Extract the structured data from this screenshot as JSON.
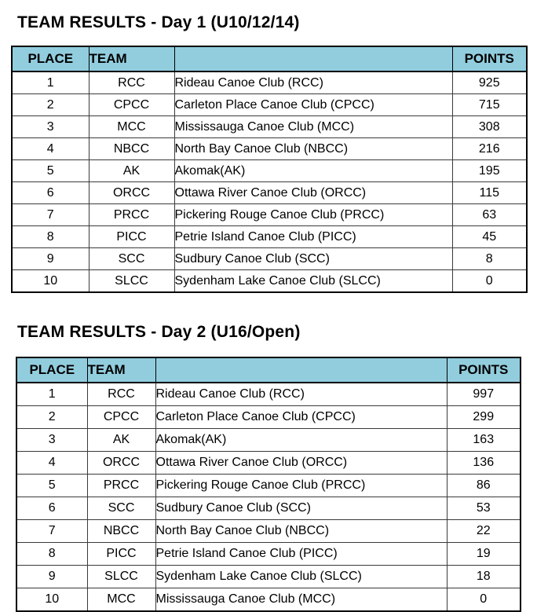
{
  "colors": {
    "header_bg": "#92cdde",
    "outer_border": "#000000",
    "grid_line": "#3a3a3a",
    "text": "#000000",
    "page_bg": "#ffffff"
  },
  "tables": [
    {
      "title": "TEAM RESULTS - Day 1 (U10/12/14)",
      "columns": [
        "PLACE",
        "TEAM",
        "",
        "POINTS"
      ],
      "rows": [
        {
          "place": 1,
          "team": "RCC",
          "name": "Rideau Canoe Club (RCC)",
          "points": 925
        },
        {
          "place": 2,
          "team": "CPCC",
          "name": "Carleton Place Canoe Club (CPCC)",
          "points": 715
        },
        {
          "place": 3,
          "team": "MCC",
          "name": "Mississauga Canoe Club (MCC)",
          "points": 308
        },
        {
          "place": 4,
          "team": "NBCC",
          "name": "North Bay Canoe Club (NBCC)",
          "points": 216
        },
        {
          "place": 5,
          "team": "AK",
          "name": "Akomak(AK)",
          "points": 195
        },
        {
          "place": 6,
          "team": "ORCC",
          "name": "Ottawa River Canoe Club (ORCC)",
          "points": 115
        },
        {
          "place": 7,
          "team": "PRCC",
          "name": "Pickering Rouge Canoe Club (PRCC)",
          "points": 63
        },
        {
          "place": 8,
          "team": "PICC",
          "name": "Petrie Island Canoe Club (PICC)",
          "points": 45
        },
        {
          "place": 9,
          "team": "SCC",
          "name": "Sudbury Canoe Club (SCC)",
          "points": 8
        },
        {
          "place": 10,
          "team": "SLCC",
          "name": "Sydenham Lake Canoe Club (SLCC)",
          "points": 0
        }
      ]
    },
    {
      "title": "TEAM RESULTS - Day 2 (U16/Open)",
      "columns": [
        "PLACE",
        "TEAM",
        "",
        "POINTS"
      ],
      "rows": [
        {
          "place": 1,
          "team": "RCC",
          "name": "Rideau Canoe Club (RCC)",
          "points": 997
        },
        {
          "place": 2,
          "team": "CPCC",
          "name": "Carleton Place Canoe Club (CPCC)",
          "points": 299
        },
        {
          "place": 3,
          "team": "AK",
          "name": "Akomak(AK)",
          "points": 163
        },
        {
          "place": 4,
          "team": "ORCC",
          "name": "Ottawa River Canoe Club (ORCC)",
          "points": 136
        },
        {
          "place": 5,
          "team": "PRCC",
          "name": "Pickering Rouge Canoe Club (PRCC)",
          "points": 86
        },
        {
          "place": 6,
          "team": "SCC",
          "name": "Sudbury Canoe Club (SCC)",
          "points": 53
        },
        {
          "place": 7,
          "team": "NBCC",
          "name": "North Bay Canoe Club (NBCC)",
          "points": 22
        },
        {
          "place": 8,
          "team": "PICC",
          "name": "Petrie Island Canoe Club (PICC)",
          "points": 19
        },
        {
          "place": 9,
          "team": "SLCC",
          "name": "Sydenham Lake Canoe Club (SLCC)",
          "points": 18
        },
        {
          "place": 10,
          "team": "MCC",
          "name": "Mississauga Canoe Club (MCC)",
          "points": 0
        }
      ]
    }
  ]
}
